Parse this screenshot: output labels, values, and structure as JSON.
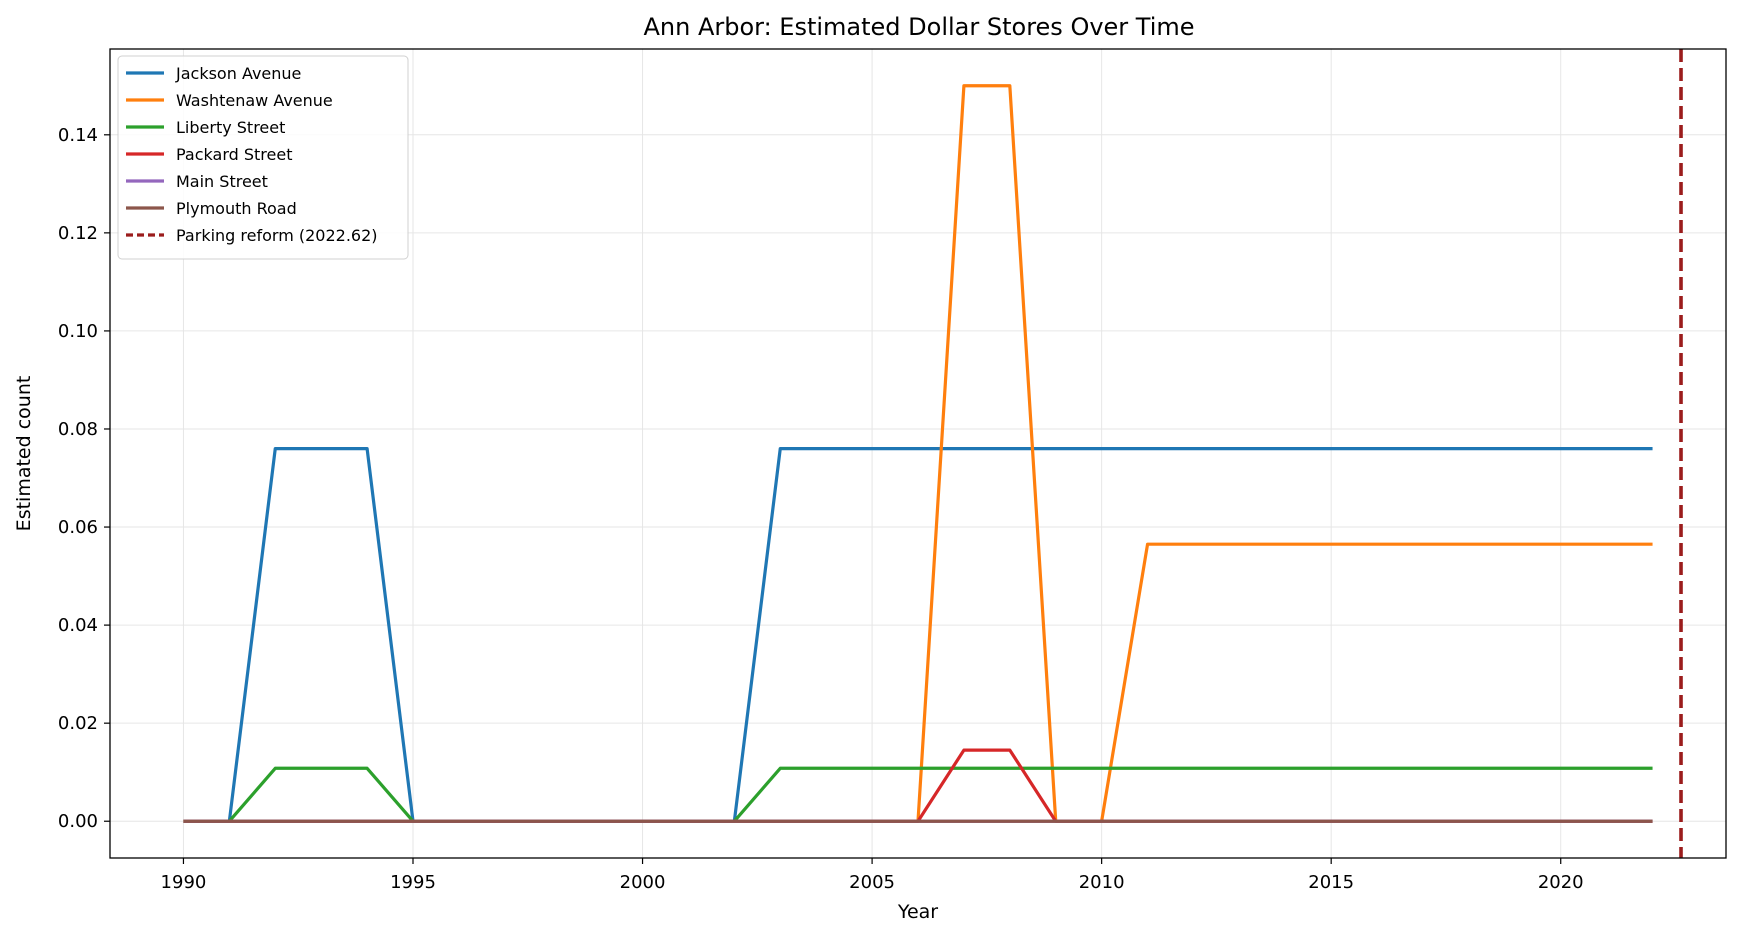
{
  "chart_data": {
    "type": "line",
    "title": "Ann Arbor: Estimated Dollar Stores Over Time",
    "xlabel": "Year",
    "ylabel": "Estimated count",
    "xlim": [
      1988.4,
      2023.6
    ],
    "ylim": [
      -0.0075,
      0.1575
    ],
    "xticks": [
      1990,
      1995,
      2000,
      2005,
      2010,
      2015,
      2020
    ],
    "yticks": [
      0.0,
      0.02,
      0.04,
      0.06,
      0.08,
      0.1,
      0.12,
      0.14
    ],
    "ytick_labels": [
      "0.00",
      "0.02",
      "0.04",
      "0.06",
      "0.08",
      "0.10",
      "0.12",
      "0.14"
    ],
    "grid": true,
    "legend_position": "top-left",
    "series": [
      {
        "name": "Jackson Avenue",
        "color": "#1f77b4",
        "points": [
          [
            1990,
            0
          ],
          [
            1991,
            0
          ],
          [
            1992,
            0.076
          ],
          [
            1994,
            0.076
          ],
          [
            1995,
            0
          ],
          [
            2002,
            0
          ],
          [
            2003,
            0.076
          ],
          [
            2022,
            0.076
          ]
        ]
      },
      {
        "name": "Washtenaw Avenue",
        "color": "#ff7f0e",
        "points": [
          [
            1990,
            0
          ],
          [
            2006,
            0
          ],
          [
            2007,
            0.15
          ],
          [
            2008,
            0.15
          ],
          [
            2009,
            0
          ],
          [
            2010,
            0
          ],
          [
            2011,
            0.0565
          ],
          [
            2022,
            0.0565
          ]
        ]
      },
      {
        "name": "Liberty Street",
        "color": "#2ca02c",
        "points": [
          [
            1990,
            0
          ],
          [
            1991,
            0
          ],
          [
            1992,
            0.0108
          ],
          [
            1994,
            0.0108
          ],
          [
            1995,
            0
          ],
          [
            2002,
            0
          ],
          [
            2003,
            0.0108
          ],
          [
            2022,
            0.0108
          ]
        ]
      },
      {
        "name": "Packard Street",
        "color": "#d62728",
        "points": [
          [
            1990,
            0
          ],
          [
            2006,
            0
          ],
          [
            2007,
            0.0145
          ],
          [
            2008,
            0.0145
          ],
          [
            2009,
            0
          ],
          [
            2022,
            0
          ]
        ]
      },
      {
        "name": "Main Street",
        "color": "#9467bd",
        "points": [
          [
            1990,
            0
          ],
          [
            2022,
            0
          ]
        ]
      },
      {
        "name": "Plymouth Road",
        "color": "#8c564b",
        "points": [
          [
            1990,
            0
          ],
          [
            2022,
            0
          ]
        ]
      }
    ],
    "reference_line": {
      "name": "Parking reform (2022.62)",
      "x": 2022.62,
      "color": "#9b1c1c",
      "style": "dashed"
    }
  }
}
